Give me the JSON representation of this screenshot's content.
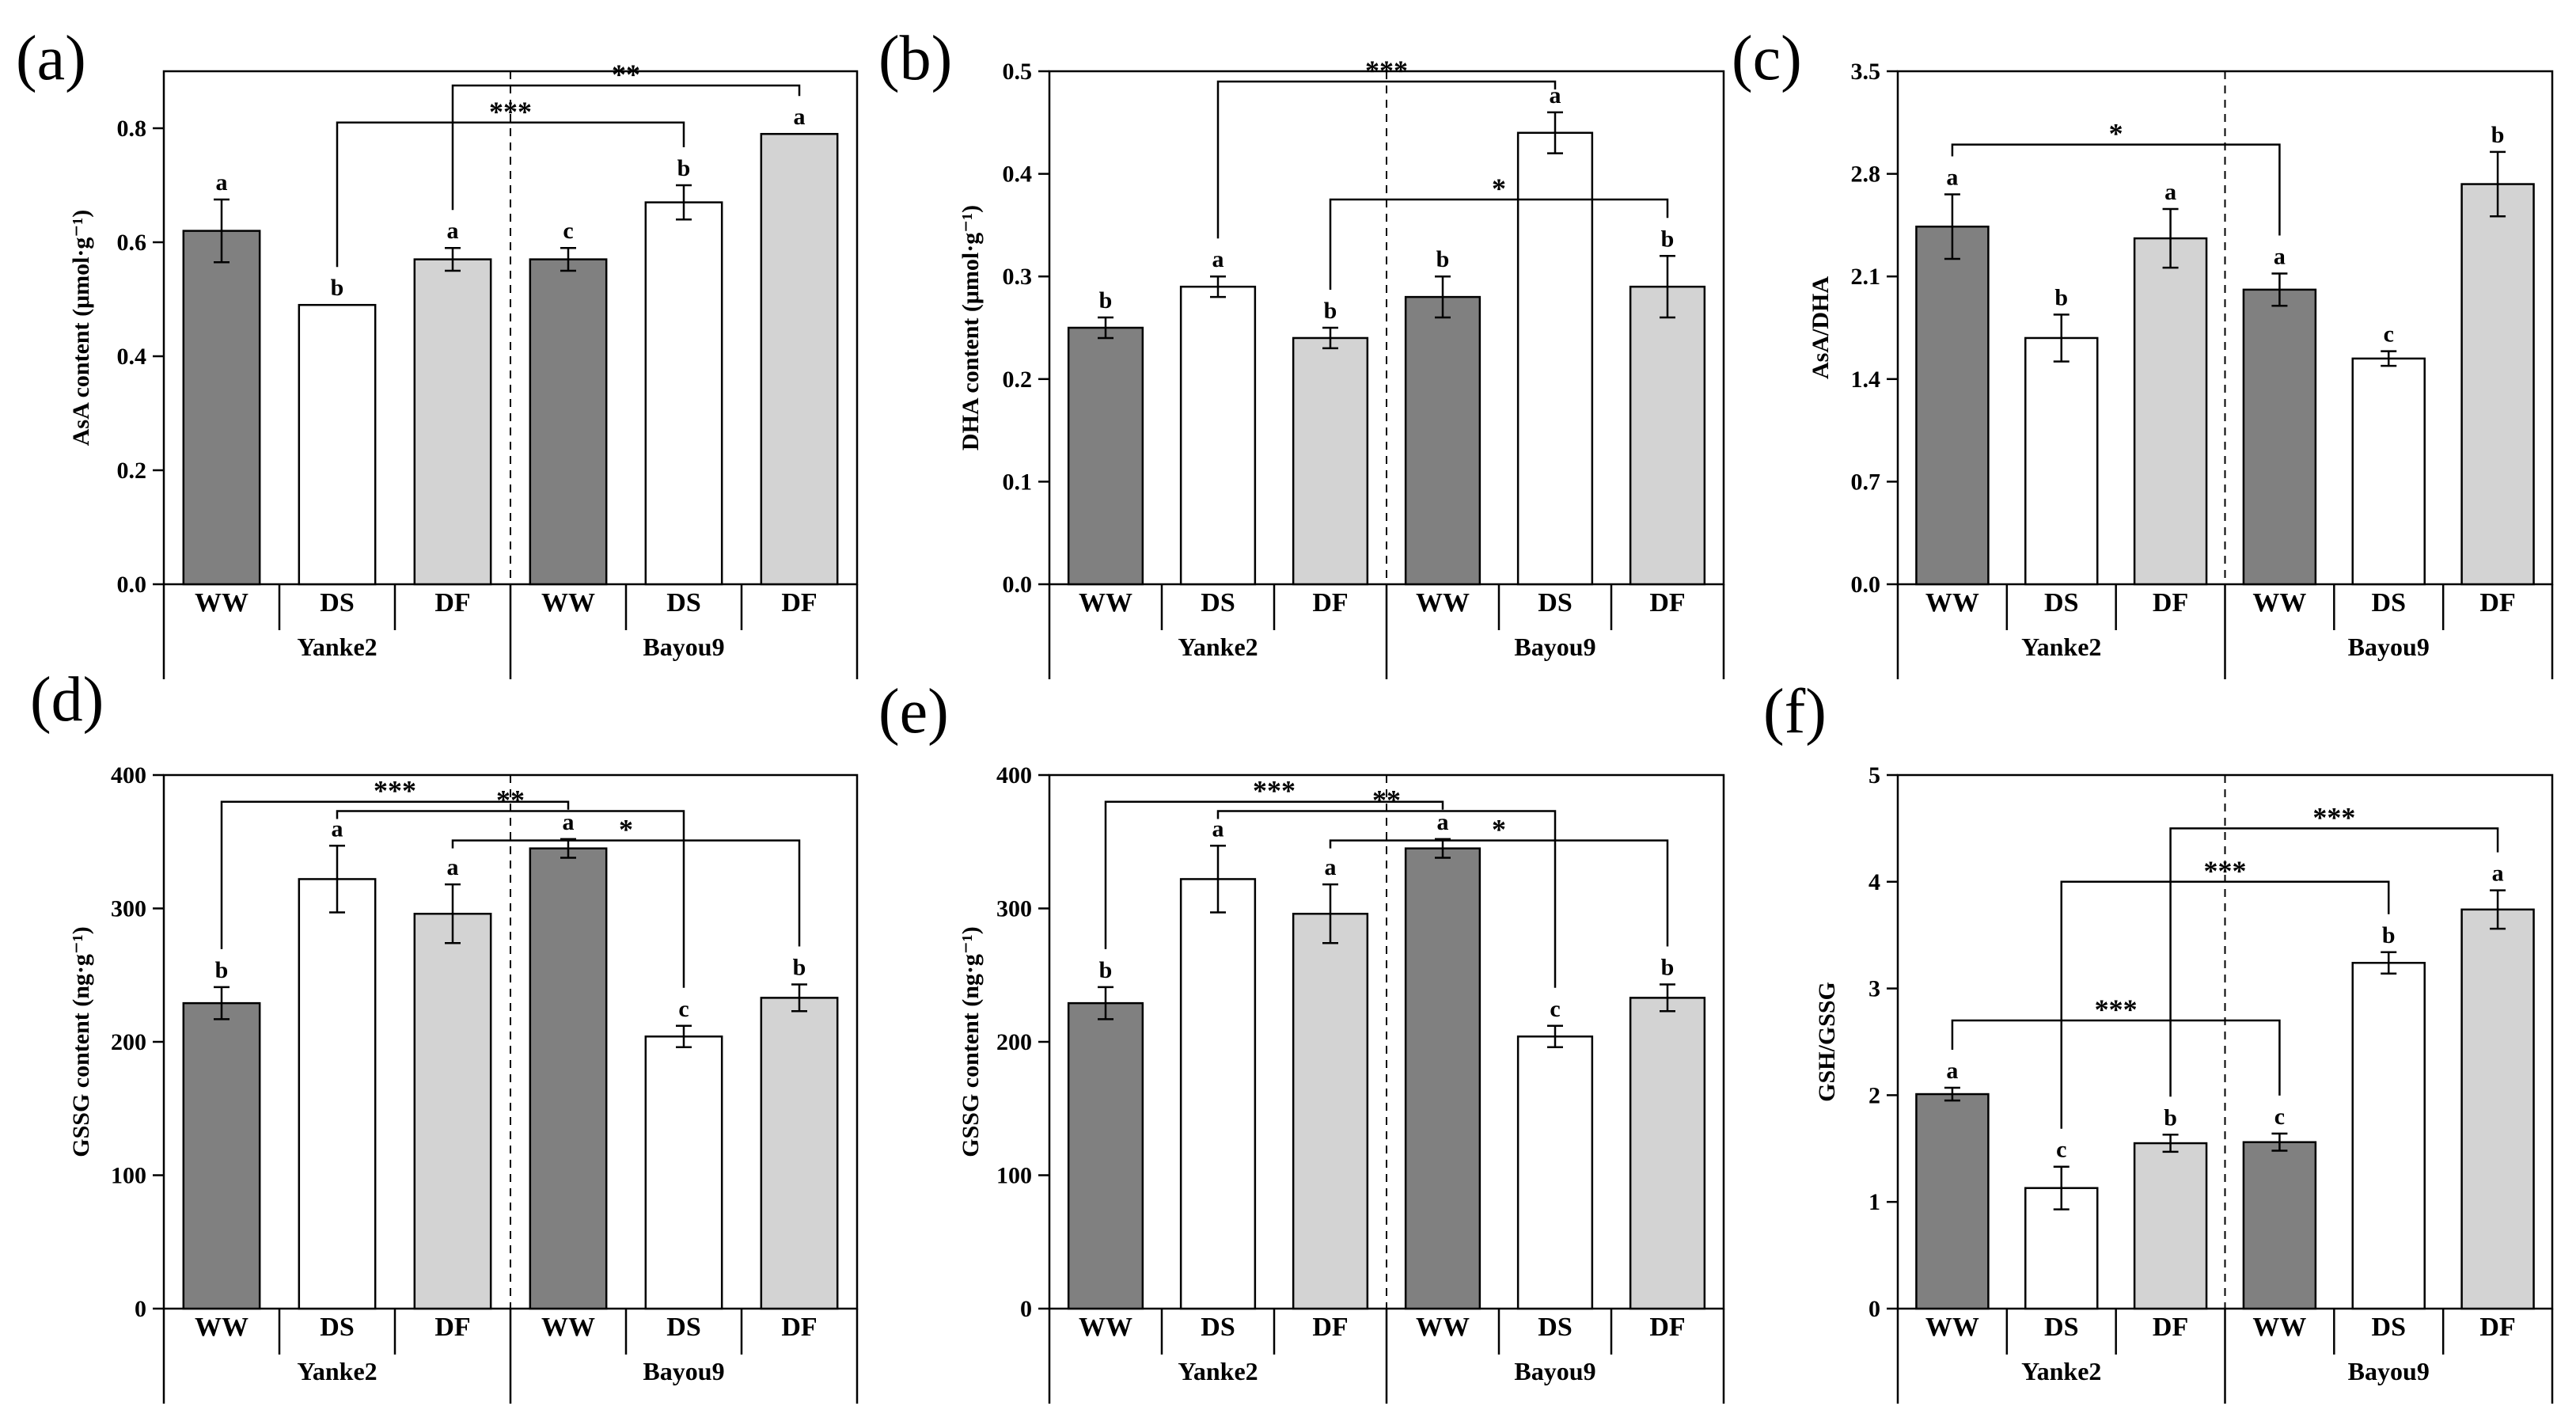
{
  "colors": {
    "WW": "#808080",
    "DS": "#ffffff",
    "DF": "#d3d3d3"
  },
  "chart_data": [
    {
      "type": "bar",
      "panel": "(a)",
      "ylabel": "AsA content (μmol·g⁻¹)",
      "yticks": [
        "0.0",
        "0.2",
        "0.4",
        "0.6",
        "0.8"
      ],
      "ylim": [
        0,
        0.9
      ],
      "groups": [
        "Yanke2",
        "Bayou9"
      ],
      "categories": [
        "WW",
        "DS",
        "DF",
        "WW",
        "DS",
        "DF"
      ],
      "values": [
        0.62,
        0.49,
        0.57,
        0.57,
        0.67,
        0.79
      ],
      "errors": [
        0.055,
        0,
        0.02,
        0.02,
        0.03,
        0
      ],
      "letters": [
        "a",
        "b",
        "a",
        "c",
        "b",
        "a"
      ],
      "brackets": [
        {
          "from": 1,
          "to": 4,
          "y": 0.81,
          "label": "***"
        },
        {
          "from": 2,
          "to": 5,
          "y": 0.875,
          "label": "**"
        }
      ]
    },
    {
      "type": "bar",
      "panel": "(b)",
      "ylabel": "DHA content (μmol·g⁻¹)",
      "yticks": [
        "0.0",
        "0.1",
        "0.2",
        "0.3",
        "0.4",
        "0.5"
      ],
      "ylim": [
        0,
        0.5
      ],
      "groups": [
        "Yanke2",
        "Bayou9"
      ],
      "categories": [
        "WW",
        "DS",
        "DF",
        "WW",
        "DS",
        "DF"
      ],
      "values": [
        0.25,
        0.29,
        0.24,
        0.28,
        0.44,
        0.29
      ],
      "errors": [
        0.01,
        0.01,
        0.01,
        0.02,
        0.02,
        0.03
      ],
      "letters": [
        "b",
        "a",
        "b",
        "b",
        "a",
        "b"
      ],
      "brackets": [
        {
          "from": 1,
          "to": 4,
          "y": 0.49,
          "label": "***"
        },
        {
          "from": 2,
          "to": 5,
          "y": 0.375,
          "label": "*"
        }
      ]
    },
    {
      "type": "bar",
      "panel": "(c)",
      "ylabel": "AsA/DHA",
      "yticks": [
        "0.0",
        "0.7",
        "1.4",
        "2.1",
        "2.8",
        "3.5"
      ],
      "ylim": [
        0,
        3.5
      ],
      "groups": [
        "Yanke2",
        "Bayou9"
      ],
      "categories": [
        "WW",
        "DS",
        "DF",
        "WW",
        "DS",
        "DF"
      ],
      "values": [
        2.44,
        1.68,
        2.36,
        2.01,
        1.54,
        2.73
      ],
      "errors": [
        0.22,
        0.16,
        0.2,
        0.11,
        0.05,
        0.22
      ],
      "letters": [
        "a",
        "b",
        "a",
        "a",
        "c",
        "b"
      ],
      "brackets": [
        {
          "from": 0,
          "to": 3,
          "y": 3.0,
          "label": "*"
        }
      ]
    },
    {
      "type": "bar",
      "panel": "(d)",
      "ylabel": "GSSG content (ng·g⁻¹)",
      "yticks": [
        "0",
        "100",
        "200",
        "300",
        "400"
      ],
      "ylim": [
        0,
        400
      ],
      "groups": [
        "Yanke2",
        "Bayou9"
      ],
      "categories": [
        "WW",
        "DS",
        "DF",
        "WW",
        "DS",
        "DF"
      ],
      "values": [
        229,
        322,
        296,
        345,
        204,
        233
      ],
      "errors": [
        12,
        25,
        22,
        7,
        8,
        10
      ],
      "letters": [
        "b",
        "a",
        "a",
        "a",
        "c",
        "b"
      ],
      "brackets": [
        {
          "from": 0,
          "to": 3,
          "y": 380,
          "label": "***"
        },
        {
          "from": 1,
          "to": 4,
          "y": 373,
          "label": "**"
        },
        {
          "from": 2,
          "to": 5,
          "y": 351,
          "label": "*"
        }
      ]
    },
    {
      "type": "bar",
      "panel": "(e)",
      "ylabel": "GSSG content (ng·g⁻¹)",
      "yticks": [
        "0",
        "100",
        "200",
        "300",
        "400"
      ],
      "ylim": [
        0,
        400
      ],
      "groups": [
        "Yanke2",
        "Bayou9"
      ],
      "categories": [
        "WW",
        "DS",
        "DF",
        "WW",
        "DS",
        "DF"
      ],
      "values": [
        229,
        322,
        296,
        345,
        204,
        233
      ],
      "errors": [
        12,
        25,
        22,
        7,
        8,
        10
      ],
      "letters": [
        "b",
        "a",
        "a",
        "a",
        "c",
        "b"
      ],
      "brackets": [
        {
          "from": 0,
          "to": 3,
          "y": 380,
          "label": "***"
        },
        {
          "from": 1,
          "to": 4,
          "y": 373,
          "label": "**"
        },
        {
          "from": 2,
          "to": 5,
          "y": 351,
          "label": "*"
        }
      ]
    },
    {
      "type": "bar",
      "panel": "(f)",
      "ylabel": "GSH/GSSG",
      "yticks": [
        "0",
        "1",
        "2",
        "3",
        "4",
        "5"
      ],
      "ylim": [
        0,
        5
      ],
      "groups": [
        "Yanke2",
        "Bayou9"
      ],
      "categories": [
        "WW",
        "DS",
        "DF",
        "WW",
        "DS",
        "DF"
      ],
      "values": [
        2.01,
        1.13,
        1.55,
        1.56,
        3.24,
        3.74
      ],
      "errors": [
        0.06,
        0.2,
        0.08,
        0.08,
        0.1,
        0.18
      ],
      "letters": [
        "a",
        "c",
        "b",
        "c",
        "b",
        "a"
      ],
      "brackets": [
        {
          "from": 2,
          "to": 5,
          "y": 4.5,
          "label": "***"
        },
        {
          "from": 1,
          "to": 4,
          "y": 4.0,
          "label": "***"
        },
        {
          "from": 0,
          "to": 3,
          "y": 2.7,
          "label": "***"
        }
      ]
    }
  ]
}
